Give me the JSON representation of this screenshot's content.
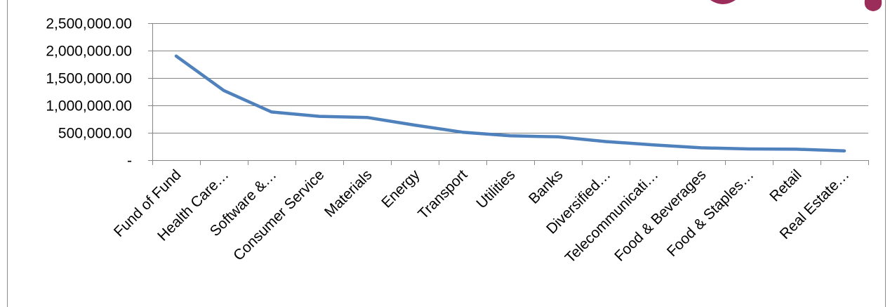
{
  "chart_data": {
    "type": "line",
    "title": "",
    "xlabel": "",
    "ylabel": "",
    "categories": [
      "Fund of Fund",
      "Health Care…",
      "Software &…",
      "Consumer Service",
      "Materials",
      "Energy",
      "Transport",
      "Utilities",
      "Banks",
      "Diversified…",
      "Telecommunicati…",
      "Food & Beverages",
      "Food & Staples…",
      "Retail",
      "Real Estate…"
    ],
    "series": [
      {
        "values": [
          1900000,
          1270000,
          880000,
          800000,
          780000,
          640000,
          510000,
          445000,
          425000,
          340000,
          280000,
          225000,
          205000,
          200000,
          170000
        ],
        "color": "#4f81bd"
      }
    ],
    "ylim": [
      0,
      2500000
    ],
    "y_ticks": [
      0,
      500000,
      1000000,
      1500000,
      2000000,
      2500000
    ],
    "y_tick_labels": [
      "-",
      "500,000.00",
      "1,000,000.00",
      "1,500,000.00",
      "2,000,000.00",
      "2,500,000.00"
    ],
    "grid": true,
    "legend": "none"
  },
  "decor": {
    "accent_color": "#9b2d5a"
  }
}
